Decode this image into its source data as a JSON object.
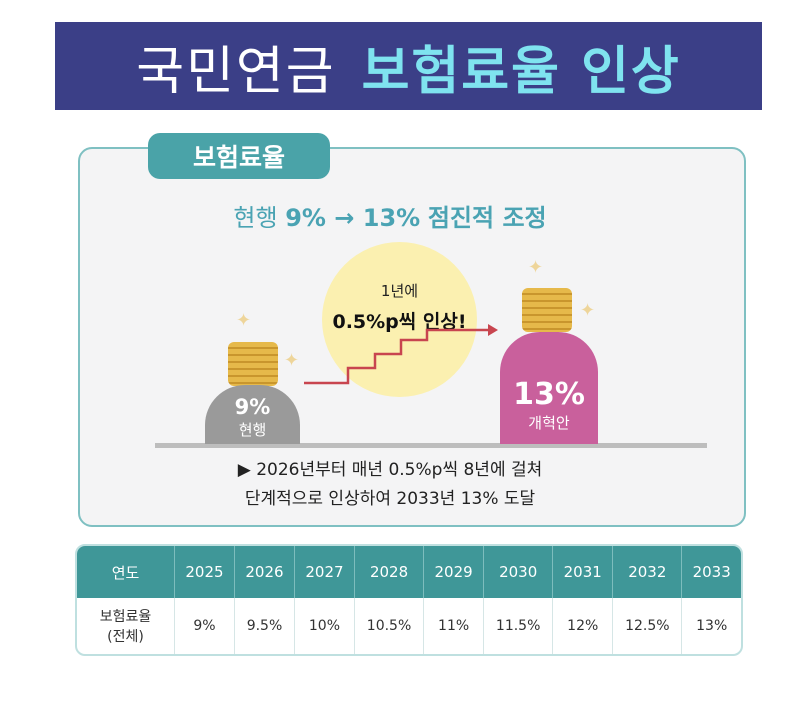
{
  "banner": {
    "title_part1": "국민연금",
    "title_part2": "보험료율 인상"
  },
  "section": {
    "tab_label": "보험료율",
    "subtitle_prefix": "현행",
    "subtitle_bold": "9% → 13%",
    "subtitle_suffix": "점진적 조정"
  },
  "bubble": {
    "line1": "1년에",
    "line2": "0.5%p씩 인상!"
  },
  "current": {
    "percent": "9%",
    "label": "현행"
  },
  "reform": {
    "percent": "13%",
    "label": "개혁안"
  },
  "note": {
    "line1": "▶ 2026년부터 매년 0.5%p씩 8년에 걸쳐",
    "line2": "단계적으로 인상하여 2033년 13% 도달"
  },
  "table": {
    "header_label": "연도",
    "row_label_1": "보험료율",
    "row_label_2": "(전체)",
    "years": [
      "2025",
      "2026",
      "2027",
      "2028",
      "2029",
      "2030",
      "2031",
      "2032",
      "2033"
    ],
    "rates": [
      "9%",
      "9.5%",
      "10%",
      "10.5%",
      "11%",
      "11.5%",
      "12%",
      "12.5%",
      "13%"
    ]
  },
  "colors": {
    "banner": "#3b3f87",
    "teal": "#3f9798",
    "pink": "#c9609c",
    "gray": "#9a9a9a"
  }
}
